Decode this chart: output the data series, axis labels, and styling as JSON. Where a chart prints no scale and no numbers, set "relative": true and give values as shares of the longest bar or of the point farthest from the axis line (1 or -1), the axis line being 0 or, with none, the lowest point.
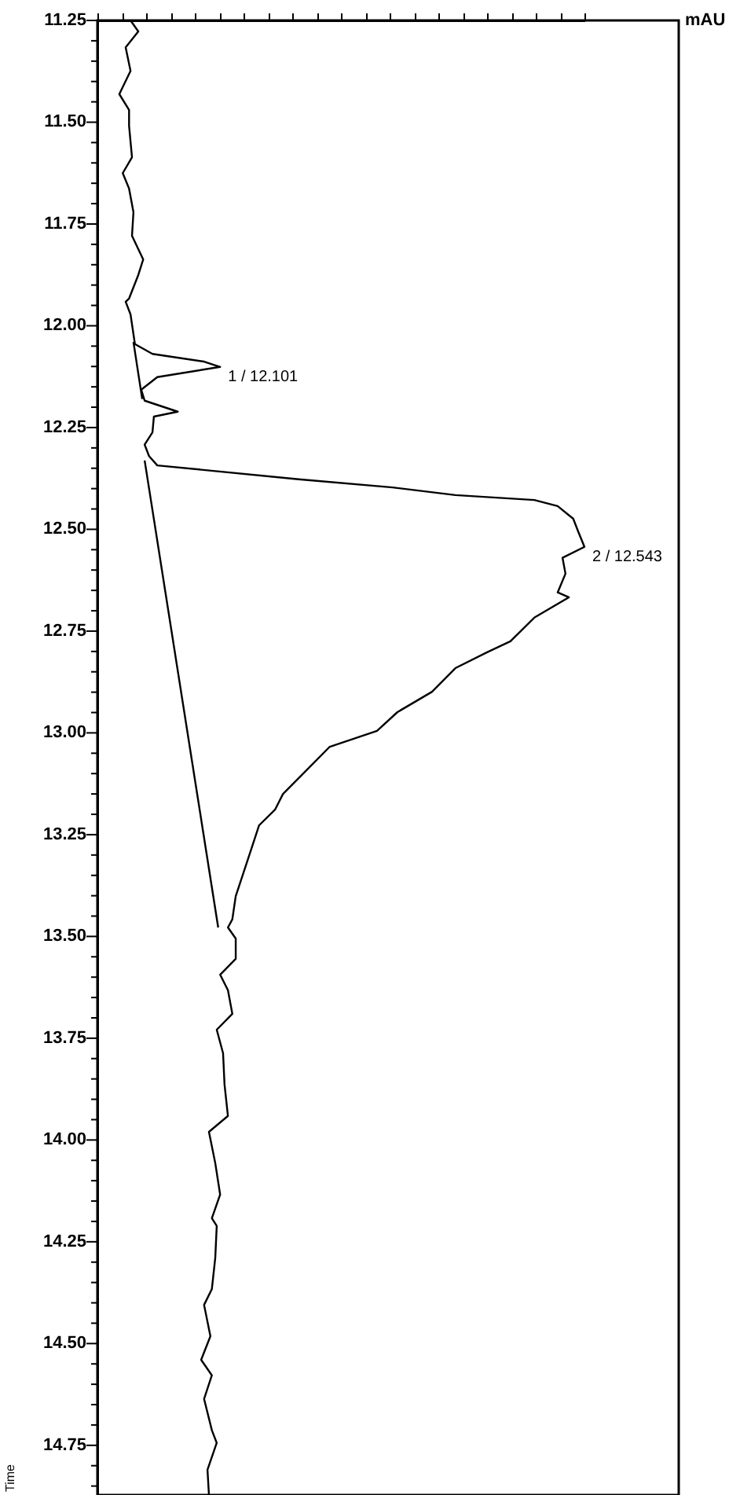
{
  "chart_data": {
    "type": "line",
    "orientation": "horizontal",
    "relative": true,
    "ylabel": "Time",
    "ylim": [
      14.872,
      11.25
    ],
    "yticks": [
      {
        "value": 11.25,
        "label": "11.25"
      },
      {
        "value": 11.3,
        "label": null
      },
      {
        "value": 11.35,
        "label": null
      },
      {
        "value": 11.4,
        "label": null
      },
      {
        "value": 11.45,
        "label": null
      },
      {
        "value": 11.5,
        "label": "11.50"
      },
      {
        "value": 11.55,
        "label": null
      },
      {
        "value": 11.6,
        "label": null
      },
      {
        "value": 11.65,
        "label": null
      },
      {
        "value": 11.7,
        "label": null
      },
      {
        "value": 11.75,
        "label": "11.75"
      },
      {
        "value": 11.8,
        "label": null
      },
      {
        "value": 11.85,
        "label": null
      },
      {
        "value": 11.9,
        "label": null
      },
      {
        "value": 11.95,
        "label": null
      },
      {
        "value": 12.0,
        "label": "12.00"
      },
      {
        "value": 12.05,
        "label": null
      },
      {
        "value": 12.1,
        "label": null
      },
      {
        "value": 12.15,
        "label": null
      },
      {
        "value": 12.2,
        "label": null
      },
      {
        "value": 12.25,
        "label": "12.25"
      },
      {
        "value": 12.3,
        "label": null
      },
      {
        "value": 12.35,
        "label": null
      },
      {
        "value": 12.4,
        "label": null
      },
      {
        "value": 12.45,
        "label": null
      },
      {
        "value": 12.5,
        "label": "12.50"
      },
      {
        "value": 12.55,
        "label": null
      },
      {
        "value": 12.6,
        "label": null
      },
      {
        "value": 12.65,
        "label": null
      },
      {
        "value": 12.7,
        "label": null
      },
      {
        "value": 12.75,
        "label": "12.75"
      },
      {
        "value": 12.8,
        "label": null
      },
      {
        "value": 12.85,
        "label": null
      },
      {
        "value": 12.9,
        "label": null
      },
      {
        "value": 12.95,
        "label": null
      },
      {
        "value": 13.0,
        "label": "13.00"
      },
      {
        "value": 13.05,
        "label": null
      },
      {
        "value": 13.1,
        "label": null
      },
      {
        "value": 13.15,
        "label": null
      },
      {
        "value": 13.2,
        "label": null
      },
      {
        "value": 13.25,
        "label": "13.25"
      },
      {
        "value": 13.3,
        "label": null
      },
      {
        "value": 13.35,
        "label": null
      },
      {
        "value": 13.4,
        "label": null
      },
      {
        "value": 13.45,
        "label": null
      },
      {
        "value": 13.5,
        "label": "13.50"
      },
      {
        "value": 13.55,
        "label": null
      },
      {
        "value": 13.6,
        "label": null
      },
      {
        "value": 13.65,
        "label": null
      },
      {
        "value": 13.7,
        "label": null
      },
      {
        "value": 13.75,
        "label": "13.75"
      },
      {
        "value": 13.8,
        "label": null
      },
      {
        "value": 13.85,
        "label": null
      },
      {
        "value": 13.9,
        "label": null
      },
      {
        "value": 13.95,
        "label": null
      },
      {
        "value": 14.0,
        "label": "14.00"
      },
      {
        "value": 14.05,
        "label": null
      },
      {
        "value": 14.1,
        "label": null
      },
      {
        "value": 14.15,
        "label": null
      },
      {
        "value": 14.2,
        "label": null
      },
      {
        "value": 14.25,
        "label": "14.25"
      },
      {
        "value": 14.3,
        "label": null
      },
      {
        "value": 14.35,
        "label": null
      },
      {
        "value": 14.4,
        "label": null
      },
      {
        "value": 14.45,
        "label": null
      },
      {
        "value": 14.5,
        "label": "14.50"
      },
      {
        "value": 14.55,
        "label": null
      },
      {
        "value": 14.6,
        "label": null
      },
      {
        "value": 14.65,
        "label": null
      },
      {
        "value": 14.7,
        "label": null
      },
      {
        "value": 14.75,
        "label": "14.75"
      },
      {
        "value": 14.8,
        "label": null
      },
      {
        "value": 14.85,
        "label": null
      }
    ],
    "tick_labels": "y",
    "series": [
      {
        "color": "#000000",
        "x": [
          11.25,
          11.277,
          11.316,
          11.374,
          11.431,
          11.47,
          11.509,
          11.586,
          11.625,
          11.663,
          11.721,
          11.779,
          11.837,
          11.875,
          11.933,
          11.941,
          11.972,
          12.045,
          12.069,
          12.088,
          12.101,
          12.126,
          12.157,
          12.184,
          12.211,
          12.223,
          12.262,
          12.292,
          12.32,
          12.343,
          12.377,
          12.397,
          12.416,
          12.428,
          12.443,
          12.474,
          12.505,
          12.543,
          12.57,
          12.609,
          12.655,
          12.667,
          12.717,
          12.775,
          12.802,
          12.841,
          12.899,
          12.949,
          12.995,
          13.034,
          13.092,
          13.15,
          13.188,
          13.227,
          13.285,
          13.343,
          13.401,
          13.458,
          13.478,
          13.505,
          13.555,
          13.594,
          13.632,
          13.69,
          13.729,
          13.787,
          13.864,
          13.941,
          13.98,
          14.057,
          14.134,
          14.192,
          14.211,
          14.289,
          14.366,
          14.405,
          14.482,
          14.54,
          14.578,
          14.636,
          14.713,
          14.744,
          14.81,
          14.872
        ],
        "values": [
          0.068,
          0.084,
          0.058,
          0.068,
          0.045,
          0.065,
          0.065,
          0.071,
          0.052,
          0.065,
          0.074,
          0.071,
          0.094,
          0.084,
          0.065,
          0.058,
          0.068,
          0.077,
          0.113,
          0.219,
          0.252,
          0.123,
          0.09,
          0.097,
          0.165,
          0.116,
          0.113,
          0.097,
          0.106,
          0.123,
          0.413,
          0.606,
          0.735,
          0.897,
          0.945,
          0.977,
          0.987,
          1,
          0.955,
          0.961,
          0.945,
          0.968,
          0.897,
          0.848,
          0.8,
          0.735,
          0.687,
          0.616,
          0.574,
          0.477,
          0.429,
          0.381,
          0.365,
          0.332,
          0.316,
          0.3,
          0.284,
          0.277,
          0.268,
          0.284,
          0.284,
          0.252,
          0.268,
          0.277,
          0.245,
          0.258,
          0.261,
          0.268,
          0.229,
          0.242,
          0.252,
          0.235,
          0.245,
          0.242,
          0.235,
          0.219,
          0.232,
          0.213,
          0.235,
          0.219,
          0.235,
          0.245,
          0.226,
          0.229
        ]
      },
      {
        "type": "line",
        "color": "#000000",
        "x": [
          12.04,
          12.18
        ],
        "values": [
          0.074,
          0.092
        ]
      },
      {
        "type": "line",
        "color": "#000000",
        "x": [
          12.331,
          13.478
        ],
        "values": [
          0.097,
          0.248
        ]
      }
    ],
    "annotations": [
      "mAU",
      {
        "text": "1 / 12.101",
        "x": 0.252,
        "y": 12.101
      },
      {
        "text": "2 / 12.543",
        "x": 1,
        "y": 12.543
      }
    ]
  }
}
